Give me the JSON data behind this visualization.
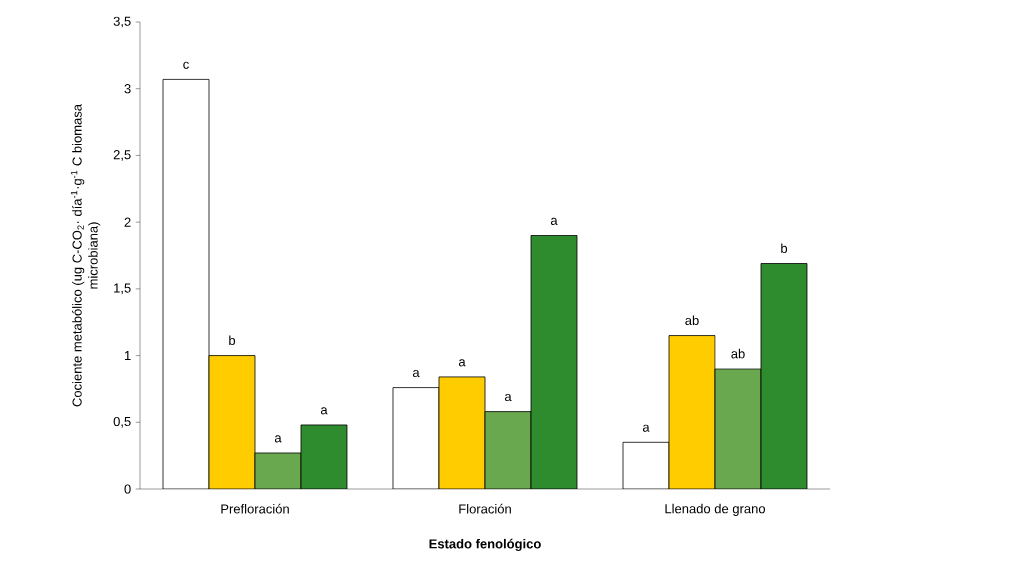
{
  "chart_data": {
    "type": "bar",
    "xlabel": "Estado fenológico",
    "ylabel": "Cociente metabólico (ug C-CO$_{2}$· día$^{-1}$·g$^{-1}$ C biomasa microbiana)",
    "categories": [
      "Prefloración",
      "Floración",
      "Llenado de grano"
    ],
    "series": [
      {
        "color": "#ffffff",
        "values": [
          3.07,
          0.76,
          0.35
        ]
      },
      {
        "color": "#ffcc00",
        "values": [
          1.0,
          0.84,
          1.15
        ]
      },
      {
        "color": "#6aa84f",
        "values": [
          0.27,
          0.58,
          0.9
        ]
      },
      {
        "color": "#2e8b2e",
        "values": [
          0.48,
          1.9,
          1.69
        ]
      }
    ],
    "ylim": [
      0,
      3.5
    ],
    "yticks": [
      0,
      {
        "value": 0.5,
        "label": "0,5"
      },
      1,
      {
        "value": 1.5,
        "label": "1,5"
      },
      2,
      {
        "value": 2.5,
        "label": "2,5"
      },
      3,
      {
        "value": 3.5,
        "label": "3,5"
      }
    ],
    "grid": false,
    "annotations": [
      "c",
      "b",
      "a",
      "a",
      "a",
      "a",
      "a",
      "a",
      "a",
      "ab",
      "ab",
      "b"
    ]
  }
}
